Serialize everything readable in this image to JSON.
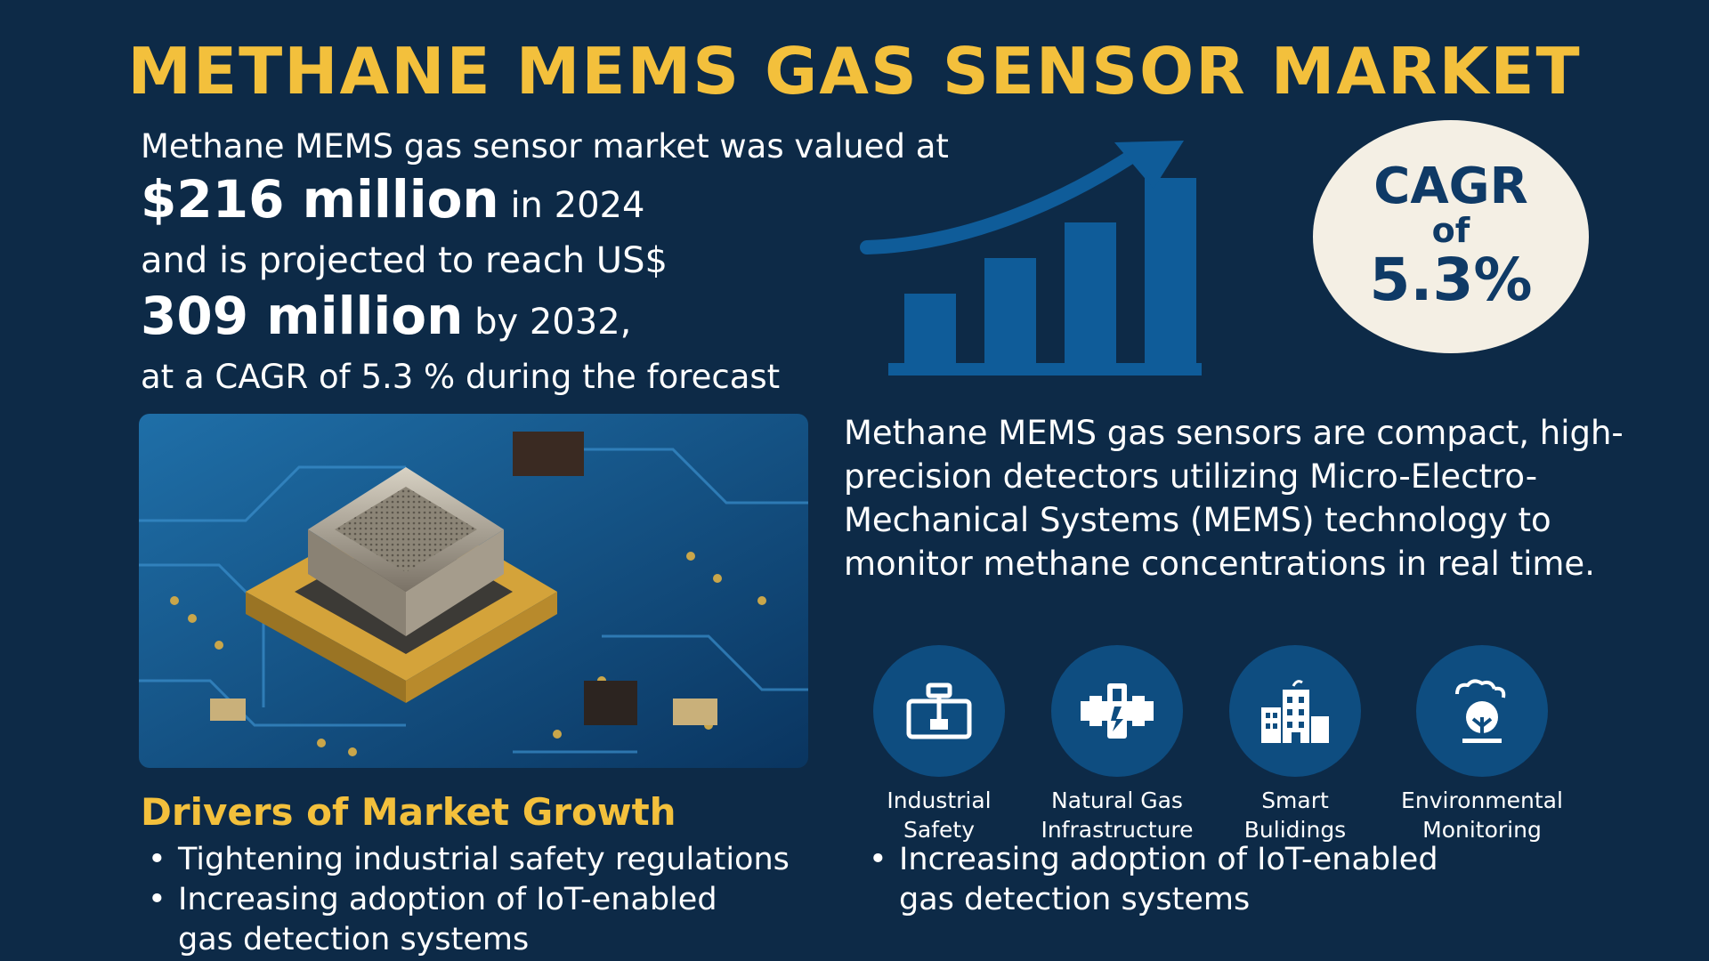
{
  "title": "METHANE MEMS GAS SENSOR MARKET",
  "intro": {
    "line1": "Methane MEMS gas sensor market was valued at",
    "value_2024": "$216 million",
    "line2_suffix": "in 2024",
    "line3": "and is projected to reach US$",
    "value_2032": "309 million",
    "line4_suffix": "by 2032,",
    "line5": "at a CAGR of 5.3 % during the forecast"
  },
  "cagr_badge": {
    "line1": "CAGR",
    "line2": "of",
    "line3": "5.3%"
  },
  "description": "Methane MEMS gas sensors are compact, high-precision detectors utilizing Micro-Electro-Mechanical Systems (MEMS) technology to monitor methane concentrations in real time.",
  "sectors": [
    {
      "icon": "industrial-safety-icon",
      "label_line1": "Industrial",
      "label_line2": "Safety"
    },
    {
      "icon": "natural-gas-infrastructure-icon",
      "label_line1": "Natural Gas",
      "label_line2": "Infrastructure"
    },
    {
      "icon": "smart-buildings-icon",
      "label_line1": "Smart",
      "label_line2": "Bulidings"
    },
    {
      "icon": "environmental-monitoring-icon",
      "label_line1": "Environmental",
      "label_line2": "Monitoring"
    }
  ],
  "drivers": {
    "heading": "Drivers of Market Growth",
    "left": [
      {
        "line1": "Tightening industrial safety regulations",
        "line2": ""
      },
      {
        "line1": "Increasing adoption of IoT-enabled",
        "line2": "gas detection systems"
      }
    ],
    "right": [
      {
        "line1": "Increasing adoption of IoT-enabled",
        "line2": "gas detection systems"
      }
    ]
  },
  "colors": {
    "background": "#0d2a47",
    "accent_yellow": "#f3c03c",
    "chart_blue": "#0f5c99",
    "badge_bg": "#f4efe4",
    "badge_text": "#0f3a66",
    "icon_circle": "#0e4d80"
  }
}
